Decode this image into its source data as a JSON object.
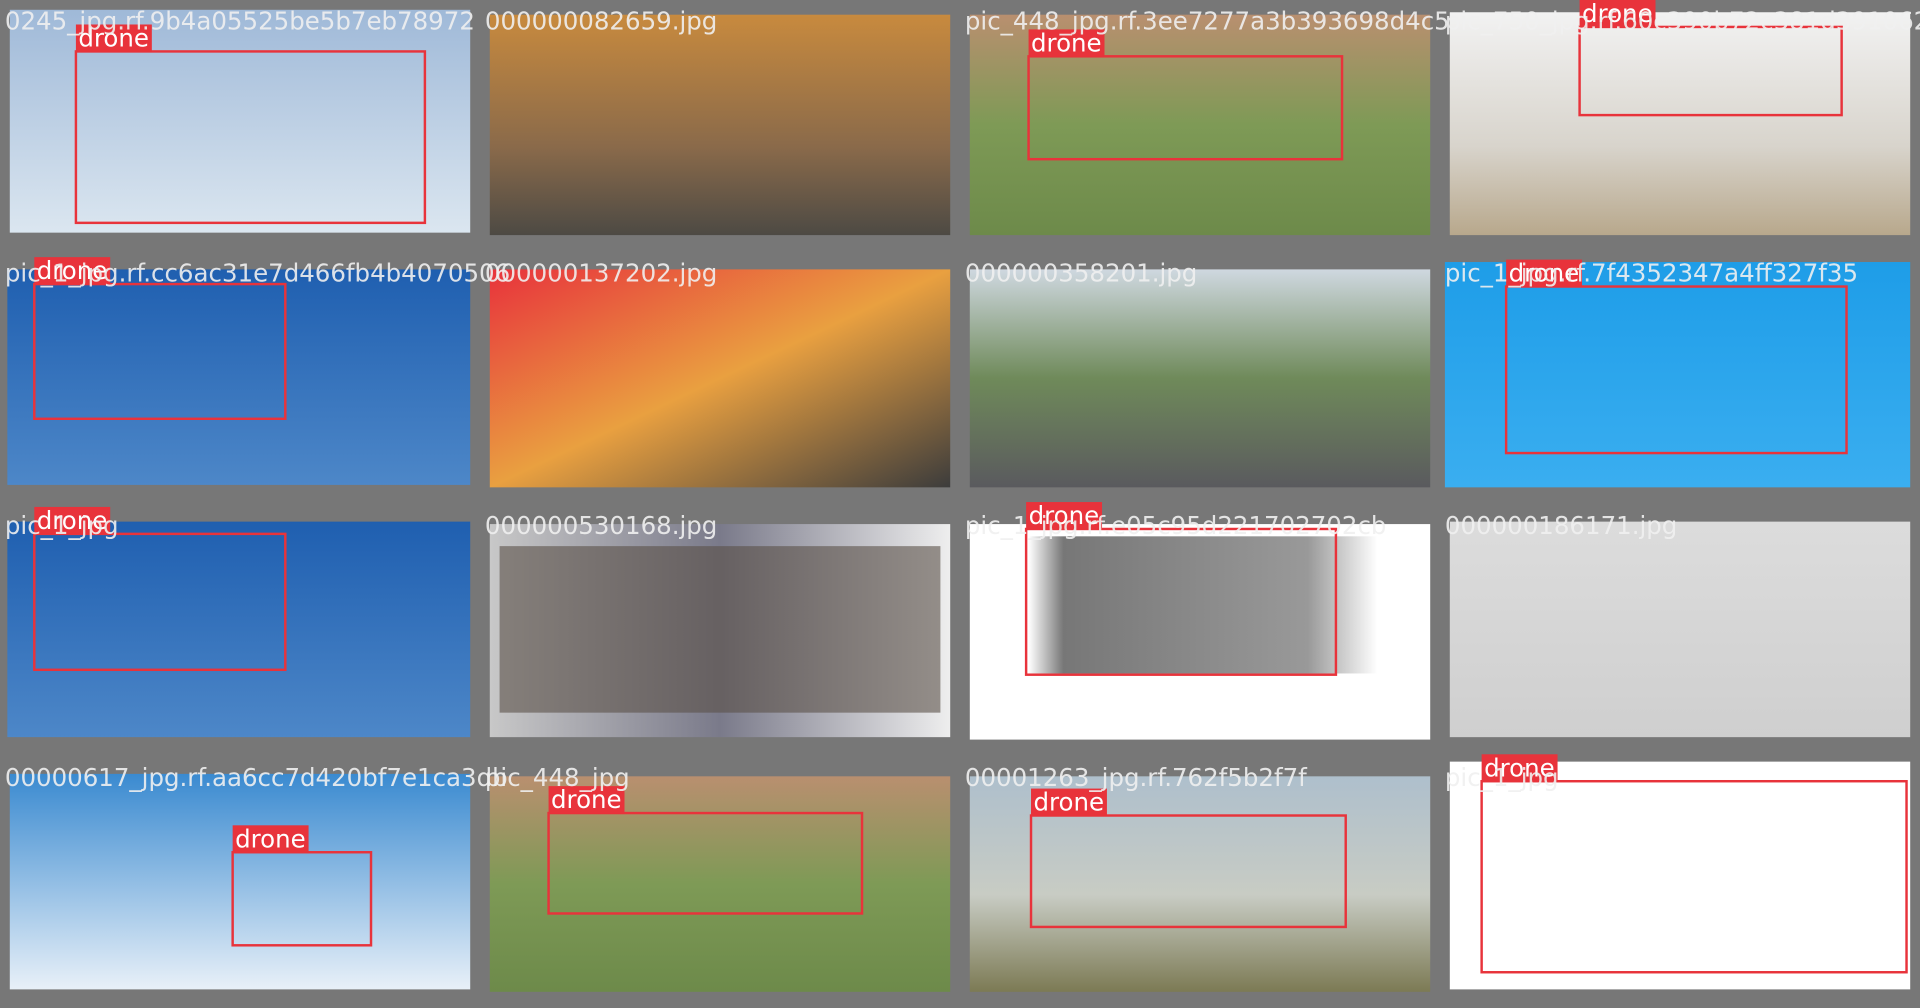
{
  "cells": [
    {
      "filename": "0245_jpg.rf.9b4a05525be5b7eb78972",
      "boxes": [
        {
          "label": "drone"
        }
      ]
    },
    {
      "filename": "000000082659.jpg",
      "boxes": []
    },
    {
      "filename": "pic_448_jpg.rf.3ee7277a3b393698d4c5",
      "boxes": [
        {
          "label": "drone"
        }
      ]
    },
    {
      "filename": "pic_750_jpg.rf.60c390b72c381d391062",
      "boxes": [
        {
          "label": "drone"
        }
      ]
    },
    {
      "filename": "pic_1_jpg.rf.cc6ac31e7d466fb4b4070506",
      "boxes": [
        {
          "label": "drone"
        }
      ]
    },
    {
      "filename": "000000137202.jpg",
      "boxes": []
    },
    {
      "filename": "000000358201.jpg",
      "boxes": []
    },
    {
      "filename": "pic_1_jpg.rf.7f4352347a4ff327f35",
      "boxes": [
        {
          "label": "drone"
        }
      ]
    },
    {
      "filename": "pic_1_jpg",
      "boxes": [
        {
          "label": "drone"
        }
      ]
    },
    {
      "filename": "000000530168.jpg",
      "boxes": []
    },
    {
      "filename": "pic_1_jpg.rf.e05c95d221702702cb",
      "boxes": [
        {
          "label": "drone"
        }
      ]
    },
    {
      "filename": "000000186171.jpg",
      "boxes": []
    },
    {
      "filename": "00000617_jpg.rf.aa6cc7d420bf7e1ca3db",
      "boxes": [
        {
          "label": "drone"
        }
      ]
    },
    {
      "filename": "pic_448_jpg",
      "boxes": [
        {
          "label": "drone"
        }
      ]
    },
    {
      "filename": "00001263_jpg.rf.762f5b2f7f",
      "boxes": [
        {
          "label": "drone"
        }
      ]
    },
    {
      "filename": "pic_1_jpg",
      "boxes": [
        {
          "label": "drone"
        }
      ]
    }
  ]
}
